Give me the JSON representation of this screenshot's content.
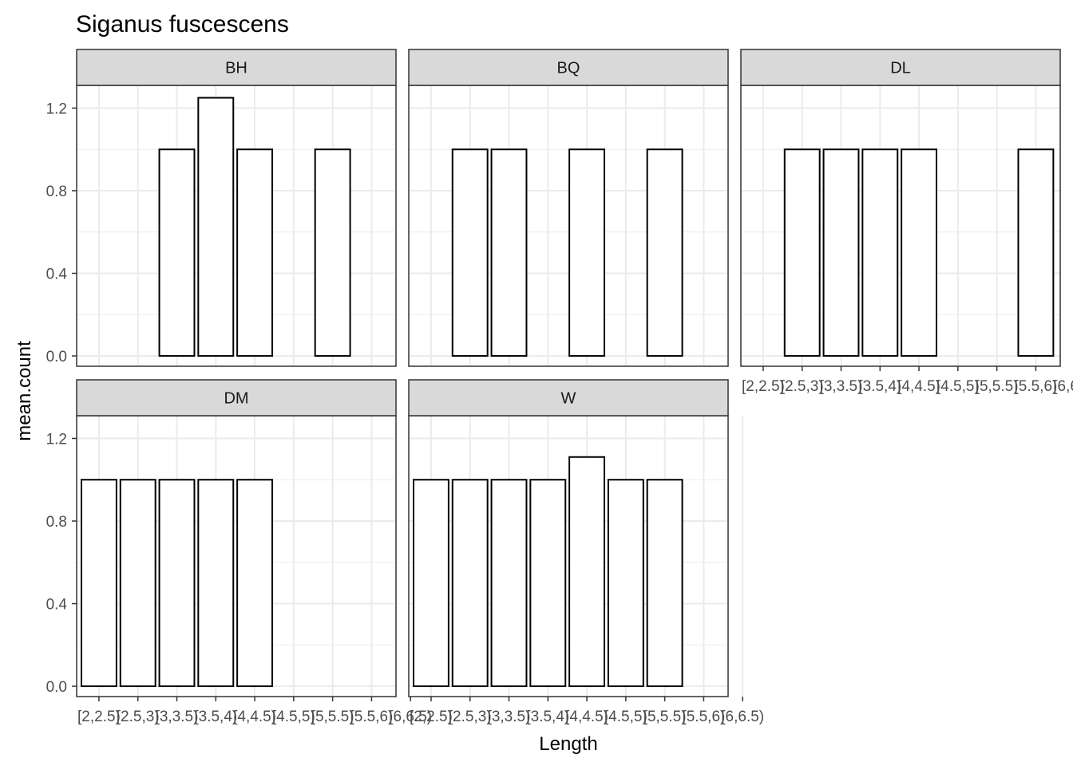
{
  "chart_data": {
    "type": "bar",
    "title": "Siganus fuscescens",
    "xlabel": "Length",
    "ylabel": "mean.count",
    "ylim": [
      -0.05,
      1.31
    ],
    "yticks": [
      0.0,
      0.4,
      0.8,
      1.2
    ],
    "ytick_labels": [
      "0.0",
      "0.4",
      "0.8",
      "1.2"
    ],
    "categories": [
      "[2,2.5)",
      "[2.5,3)",
      "[3,3.5)",
      "[3.5,4)",
      "[4,4.5)",
      "[4.5,5)",
      "[5,5.5)",
      "[5.5,6)",
      "[6,6.5)"
    ],
    "grid": true,
    "facets": [
      {
        "label": "BH",
        "values": [
          null,
          null,
          1.0,
          1.25,
          1.0,
          null,
          1.0,
          null,
          null
        ]
      },
      {
        "label": "BQ",
        "values": [
          null,
          1.0,
          1.0,
          null,
          1.0,
          null,
          1.0,
          null,
          null
        ]
      },
      {
        "label": "DL",
        "values": [
          null,
          1.0,
          1.0,
          1.0,
          1.0,
          null,
          null,
          1.0,
          null
        ]
      },
      {
        "label": "DM",
        "values": [
          1.0,
          1.0,
          1.0,
          1.0,
          1.0,
          null,
          null,
          null,
          null
        ]
      },
      {
        "label": "W",
        "values": [
          1.0,
          1.0,
          1.0,
          1.0,
          1.11,
          1.0,
          1.0,
          null,
          null
        ]
      }
    ],
    "colors": {
      "bar_fill": "#ffffff",
      "bar_stroke": "#000000",
      "strip_fill": "#d9d9d9",
      "panel_border": "#333333",
      "grid": "#ebebeb",
      "text": "#4d4d4d"
    }
  }
}
